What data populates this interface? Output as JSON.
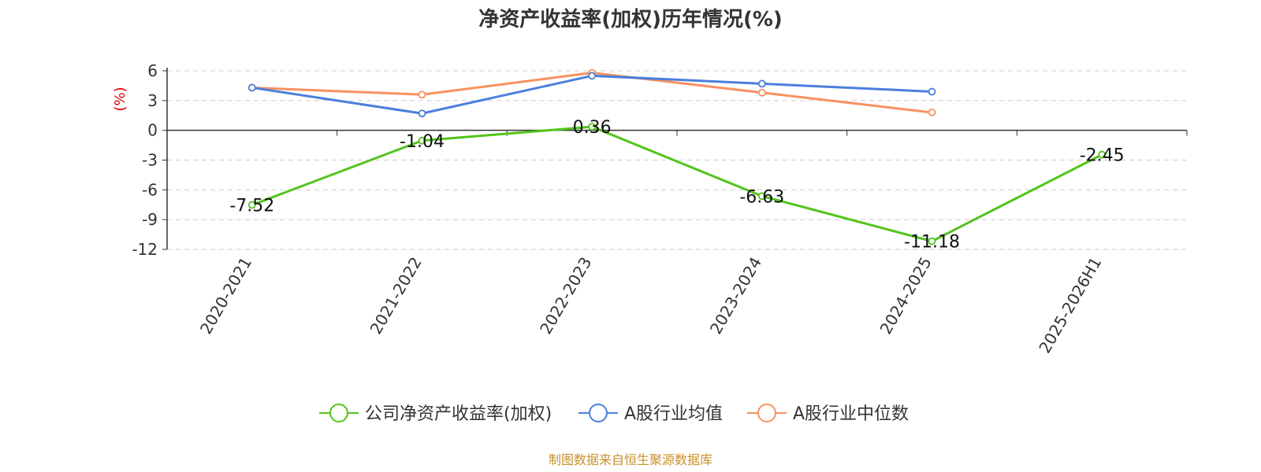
{
  "chart_data": {
    "type": "line",
    "title": "净资产收益率(加权)历年情况(%)",
    "ylabel": "(%)",
    "xlabel": "",
    "categories": [
      "2020-2021",
      "2021-2022",
      "2022-2023",
      "2023-2024",
      "2024-2025",
      "2025-2026H1"
    ],
    "ylim": [
      -12,
      6
    ],
    "yticks": [
      6,
      3,
      0,
      -3,
      -6,
      -9,
      -12
    ],
    "grid": true,
    "legend_position": "bottom",
    "series": [
      {
        "name": "公司净资产收益率(加权)",
        "color": "#52c41a",
        "values": [
          -7.52,
          -1.04,
          0.36,
          -6.63,
          -11.18,
          -2.45
        ],
        "labels": [
          "-7.52",
          "-1.04",
          "0.36",
          "-6.63",
          "-11.18",
          "-2.45"
        ]
      },
      {
        "name": "A股行业均值",
        "color": "#4a7fdc",
        "values": [
          4.3,
          1.7,
          5.5,
          4.7,
          3.9,
          null
        ]
      },
      {
        "name": "A股行业中位数",
        "color": "#f79160",
        "values": [
          4.3,
          3.6,
          5.8,
          3.8,
          1.8,
          null
        ]
      }
    ],
    "source": "制图数据来自恒生聚源数据库"
  }
}
